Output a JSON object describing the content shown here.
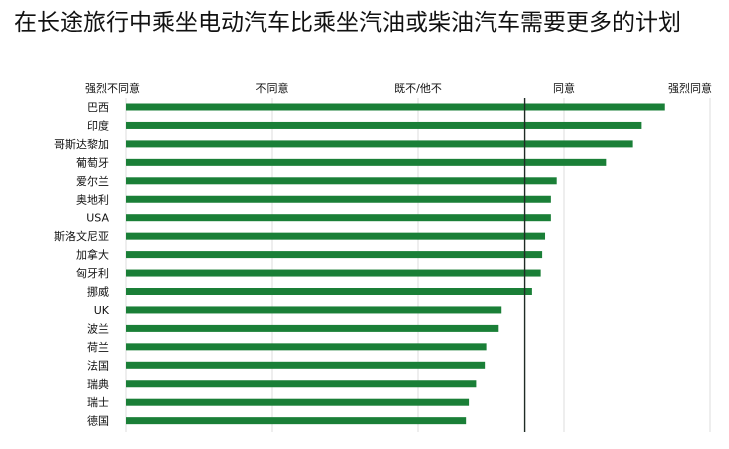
{
  "chart_data": {
    "type": "bar",
    "orientation": "horizontal",
    "title": "在长途旅行中乘坐电动汽车比乘坐汽油或柴油汽车需要更多的计划",
    "scale_labels": [
      "强烈不同意",
      "不同意",
      "既不/他不",
      "同意",
      "强烈同意"
    ],
    "categories": [
      "巴西",
      "印度",
      "哥斯达黎加",
      "葡萄牙",
      "爱尔兰",
      "奥地利",
      "USA",
      "斯洛文尼亚",
      "加拿大",
      "匈牙利",
      "挪威",
      "UK",
      "波兰",
      "荷兰",
      "法国",
      "瑞典",
      "瑞士",
      "德国"
    ],
    "values": [
      4.69,
      4.53,
      4.47,
      4.29,
      3.95,
      3.91,
      3.91,
      3.87,
      3.85,
      3.84,
      3.78,
      3.57,
      3.55,
      3.47,
      3.46,
      3.4,
      3.35,
      3.33
    ],
    "xlim": [
      1,
      5
    ],
    "reference_value": 3.73,
    "bar_color": "#1a7f37",
    "grid": true
  }
}
